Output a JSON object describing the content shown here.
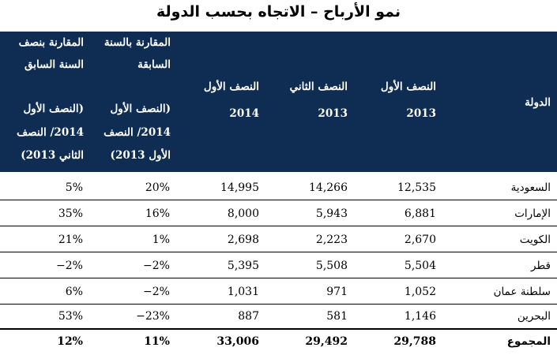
{
  "title": "نمو الأرباح – الاتجاه بحسب الدولة",
  "headers": {
    "country": "الدولة",
    "h1_2013": [
      "النصف الأول",
      "2013"
    ],
    "h2_2013": [
      "النصف الثاني",
      "2013"
    ],
    "h1_2014": [
      "النصف الأول",
      "2014"
    ],
    "cmp_prev_year": [
      "المقارنة بالسنة",
      "السابقة",
      "(النصف الأول",
      "2014/ النصف",
      "الأول 2013)"
    ],
    "cmp_prev_half": [
      "المقارنة بنصف",
      "السنة السابق",
      "(النصف الأول",
      "2014/ النصف",
      "الثاني 2013)"
    ]
  },
  "rows": [
    {
      "country": "السعودية",
      "h1_2013": "12,535",
      "h2_2013": "14,266",
      "h1_2014": "14,995",
      "cmp_year": "20%",
      "cmp_half": "5%"
    },
    {
      "country": "الإمارات",
      "h1_2013": "6,881",
      "h2_2013": "5,943",
      "h1_2014": "8,000",
      "cmp_year": "16%",
      "cmp_half": "35%"
    },
    {
      "country": "الكويت",
      "h1_2013": "2,670",
      "h2_2013": "2,223",
      "h1_2014": "2,698",
      "cmp_year": "1%",
      "cmp_half": "21%"
    },
    {
      "country": "قطر",
      "h1_2013": "5,504",
      "h2_2013": "5,508",
      "h1_2014": "5,395",
      "cmp_year": "−2%",
      "cmp_half": "−2%"
    },
    {
      "country": "سلطنة عمان",
      "h1_2013": "1,052",
      "h2_2013": "971",
      "h1_2014": "1,031",
      "cmp_year": "−2%",
      "cmp_half": "6%"
    },
    {
      "country": "البحرين",
      "h1_2013": "1,146",
      "h2_2013": "581",
      "h1_2014": "887",
      "cmp_year": "−23%",
      "cmp_half": "53%"
    }
  ],
  "total": {
    "country": "المجموع",
    "h1_2013": "29,788",
    "h2_2013": "29,492",
    "h1_2014": "33,006",
    "cmp_year": "11%",
    "cmp_half": "12%"
  },
  "colors": {
    "header_bg": "#0f2d52",
    "header_text": "#ffffff"
  }
}
